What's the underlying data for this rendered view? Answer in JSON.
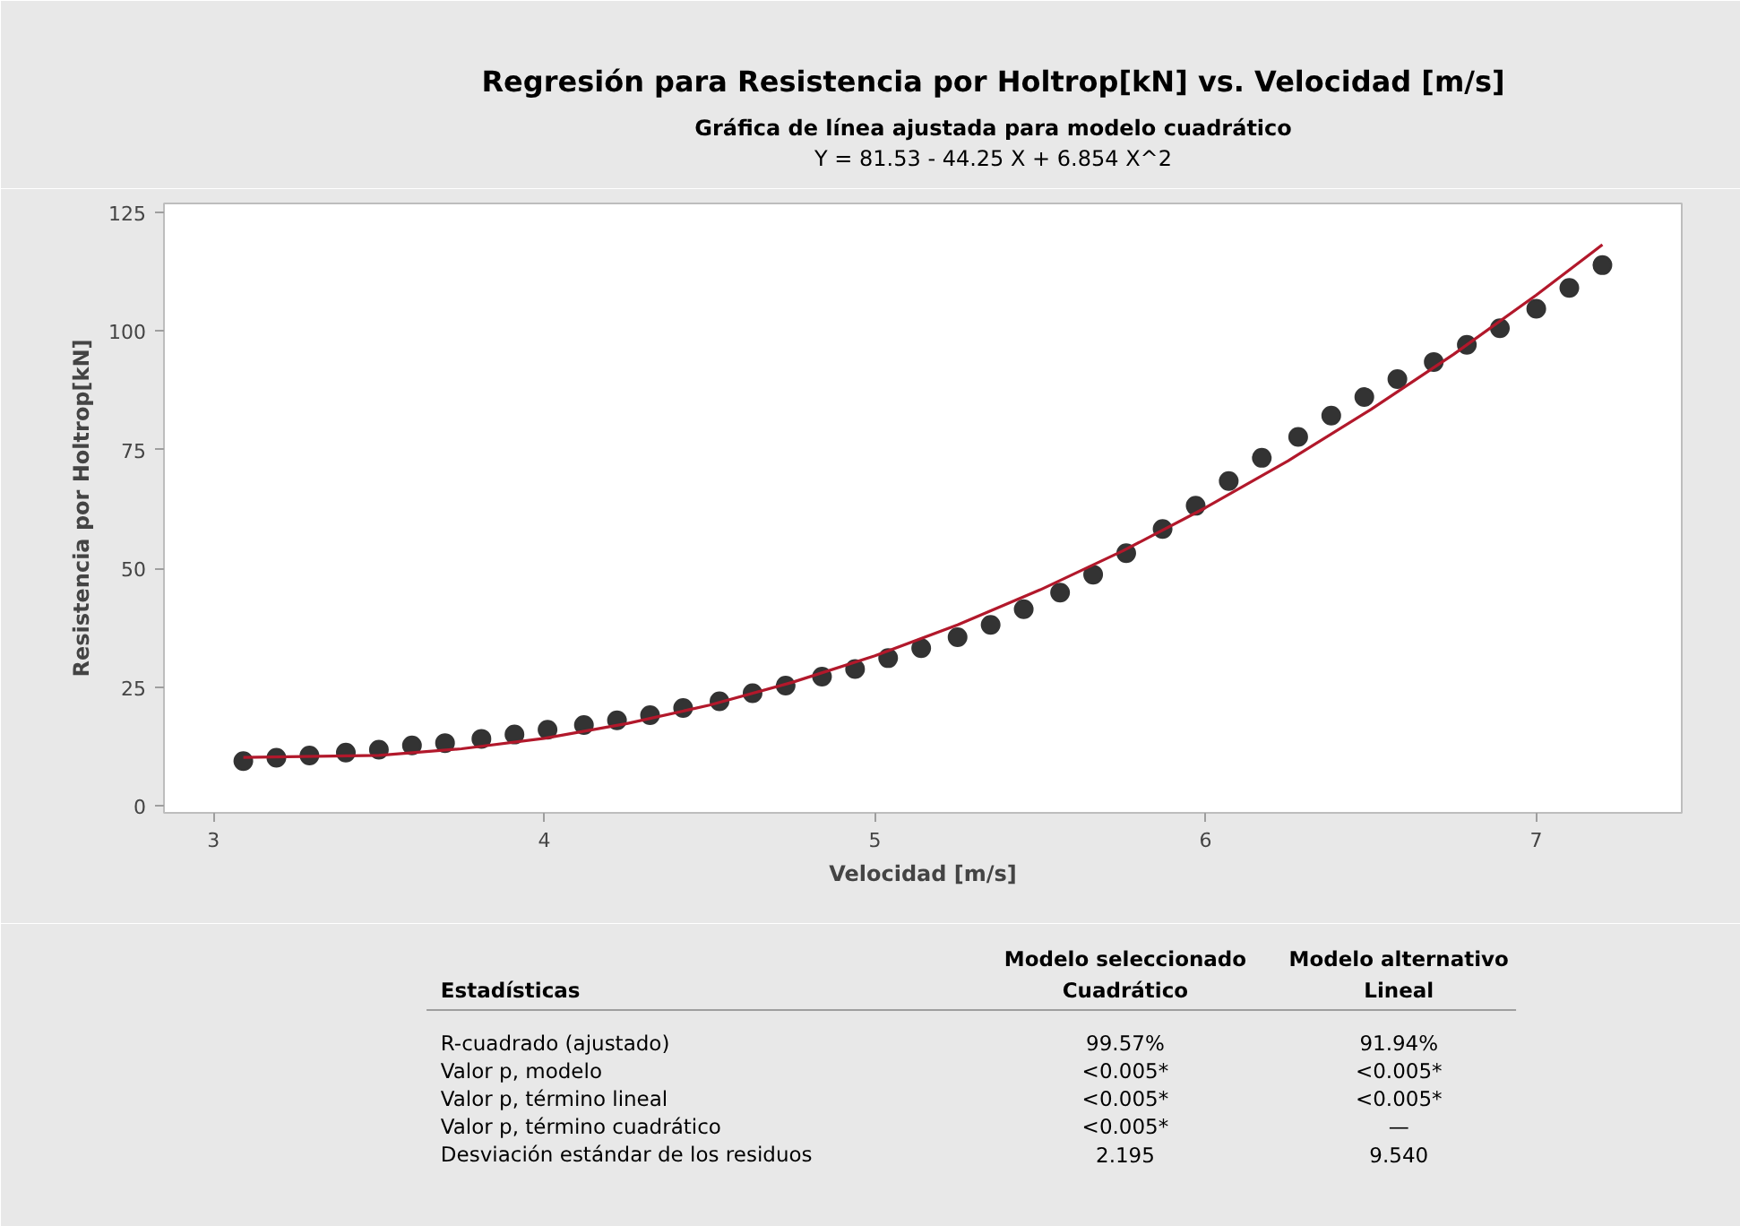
{
  "chart_data": {
    "type": "scatter",
    "title": "Regresión para Resistencia por Holtrop[kN] vs. Velocidad [m/s]",
    "subtitle": "Gráfica de línea ajustada para modelo cuadrático",
    "xlabel": "Velocidad [m/s]",
    "ylabel": "Resistencia por Holtrop[kN]",
    "xlim": [
      2.85,
      7.44
    ],
    "ylim": [
      -1.5,
      126.9
    ],
    "xticks": [
      3,
      4,
      5,
      6,
      7
    ],
    "yticks": [
      0,
      25,
      50,
      75,
      100,
      125
    ],
    "grid": false,
    "series": [
      {
        "marker": "circle",
        "color": "#333333",
        "x": [
          3.09,
          3.19,
          3.29,
          3.4,
          3.5,
          3.6,
          3.7,
          3.81,
          3.91,
          4.01,
          4.12,
          4.22,
          4.32,
          4.42,
          4.53,
          4.63,
          4.73,
          4.84,
          4.94,
          5.04,
          5.14,
          5.25,
          5.35,
          5.45,
          5.56,
          5.66,
          5.76,
          5.87,
          5.97,
          6.07,
          6.17,
          6.28,
          6.38,
          6.48,
          6.58,
          6.69,
          6.79,
          6.89,
          7.0,
          7.1,
          7.2
        ],
        "values": [
          9.4,
          10.1,
          10.6,
          11.2,
          11.8,
          12.7,
          13.2,
          14.1,
          15.0,
          16.0,
          17.0,
          18.0,
          19.1,
          20.6,
          22.0,
          23.7,
          25.3,
          27.2,
          28.8,
          31.1,
          33.2,
          35.5,
          38.1,
          41.4,
          44.9,
          48.7,
          53.2,
          58.3,
          63.2,
          68.4,
          73.3,
          77.7,
          82.2,
          86.1,
          89.9,
          93.5,
          97.1,
          100.6,
          104.7,
          109.1,
          113.9
        ]
      },
      {
        "type": "line",
        "color": "#b2182b",
        "line_style": "solid",
        "x": [
          3.09,
          3.5,
          3.75,
          4,
          4.25,
          4.5,
          4.75,
          5,
          5.25,
          5.5,
          5.75,
          6,
          6.25,
          6.5,
          6.75,
          7,
          7.2
        ],
        "values": [
          10.2,
          10.6,
          12.0,
          14.2,
          17.3,
          21.2,
          26.0,
          31.6,
          38.1,
          45.5,
          53.7,
          62.8,
          72.7,
          83.5,
          95.1,
          107.6,
          118.2
        ]
      }
    ],
    "annotations": [
      "Y = 81.53 - 44.25 X + 6.854 X^2",
      "Estadísticas",
      "Modelo seleccionado\nCuadrático",
      "Modelo alternativo\nLineal",
      "R-cuadrado (ajustado)",
      "99.57%",
      "91.94%",
      "Valor p, modelo",
      "<0.005*",
      "<0.005*",
      "Valor p, término lineal",
      "<0.005*",
      "<0.005*",
      "Valor p, término cuadrático",
      "<0.005*",
      "—",
      "Desviación estándar de los residuos",
      "2.195",
      "9.540"
    ]
  }
}
